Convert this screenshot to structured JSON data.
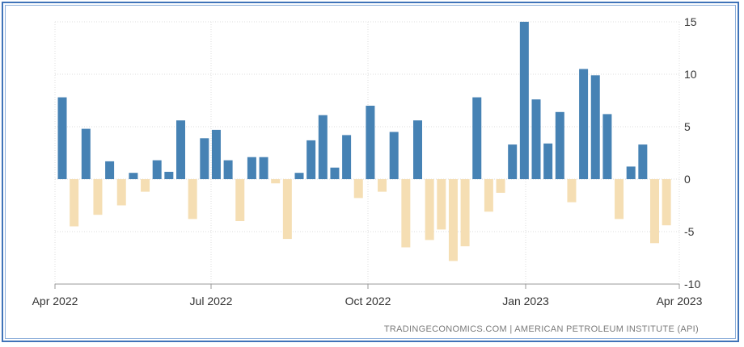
{
  "chart_data": {
    "type": "bar",
    "title": "",
    "xlabel": "",
    "ylabel": "",
    "ylim": [
      -10,
      15
    ],
    "y_ticks": [
      "15",
      "10",
      "5",
      "0",
      "-5",
      "-10"
    ],
    "x_ticks": [
      "Apr 2022",
      "Jul 2022",
      "Oct 2022",
      "Jan 2023",
      "Apr 2023"
    ],
    "grid": true,
    "positive_color": "#4682b4",
    "negative_color": "#f5deb3",
    "values": [
      7.8,
      -4.5,
      4.8,
      -3.4,
      1.7,
      -2.5,
      0.6,
      -1.2,
      1.8,
      0.7,
      5.6,
      -3.8,
      3.9,
      4.7,
      1.8,
      -4.0,
      2.1,
      2.1,
      -0.4,
      -5.7,
      0.6,
      3.7,
      6.1,
      1.1,
      4.2,
      -1.8,
      7.0,
      -1.2,
      4.5,
      -6.5,
      5.6,
      -5.8,
      -4.8,
      -7.8,
      -6.4,
      7.8,
      -3.1,
      -1.3,
      3.3,
      15.0,
      7.6,
      3.4,
      6.4,
      -2.2,
      10.5,
      9.9,
      6.2,
      -3.8,
      1.2,
      3.3,
      -6.1,
      -4.4
    ]
  },
  "source": "TRADINGECONOMICS.COM  |  AMERICAN PETROLEUM INSTITUTE (API)"
}
